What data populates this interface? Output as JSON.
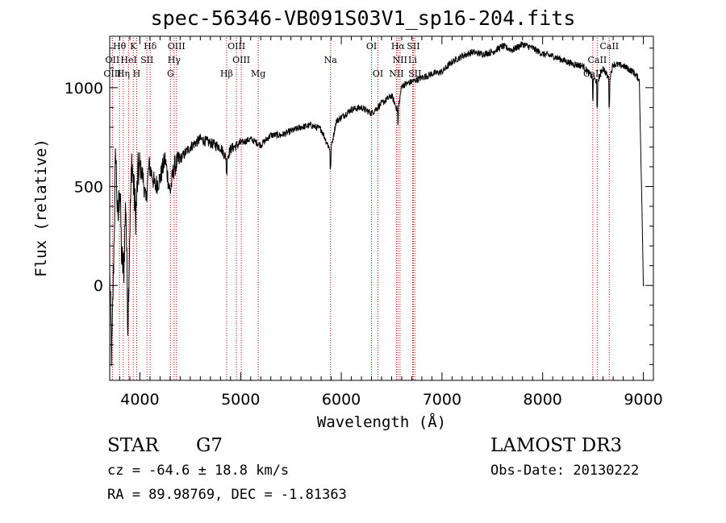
{
  "chart_data": {
    "type": "line",
    "title": "spec-56346-VB091S03V1_sp16-204.fits",
    "xlabel": "Wavelength (Å)",
    "ylabel": "Flux (relative)",
    "xlim": [
      3700,
      9100
    ],
    "ylim": [
      -480,
      1260
    ],
    "x_ticks": [
      4000,
      5000,
      6000,
      7000,
      8000,
      9000
    ],
    "y_ticks": [
      0,
      500,
      1000
    ],
    "line_color": "#000000",
    "marker_color": "#cc0000",
    "spectrum_anchors": [
      [
        3700,
        60
      ],
      [
        3720,
        -380
      ],
      [
        3740,
        150
      ],
      [
        3760,
        700
      ],
      [
        3780,
        300
      ],
      [
        3800,
        520
      ],
      [
        3820,
        120
      ],
      [
        3840,
        80
      ],
      [
        3860,
        450
      ],
      [
        3880,
        -200
      ],
      [
        3900,
        300
      ],
      [
        3920,
        640
      ],
      [
        3940,
        480
      ],
      [
        3960,
        350
      ],
      [
        3980,
        560
      ],
      [
        4000,
        600
      ],
      [
        4030,
        550
      ],
      [
        4060,
        420
      ],
      [
        4090,
        610
      ],
      [
        4120,
        560
      ],
      [
        4150,
        500
      ],
      [
        4200,
        540
      ],
      [
        4250,
        640
      ],
      [
        4300,
        470
      ],
      [
        4340,
        600
      ],
      [
        4400,
        640
      ],
      [
        4500,
        700
      ],
      [
        4600,
        740
      ],
      [
        4700,
        720
      ],
      [
        4800,
        700
      ],
      [
        4861,
        640
      ],
      [
        4900,
        690
      ],
      [
        5000,
        720
      ],
      [
        5100,
        740
      ],
      [
        5200,
        710
      ],
      [
        5300,
        760
      ],
      [
        5400,
        760
      ],
      [
        5500,
        780
      ],
      [
        5600,
        800
      ],
      [
        5700,
        810
      ],
      [
        5800,
        790
      ],
      [
        5893,
        680
      ],
      [
        5950,
        830
      ],
      [
        6000,
        850
      ],
      [
        6100,
        890
      ],
      [
        6200,
        900
      ],
      [
        6300,
        870
      ],
      [
        6400,
        920
      ],
      [
        6500,
        960
      ],
      [
        6563,
        880
      ],
      [
        6600,
        1010
      ],
      [
        6700,
        1030
      ],
      [
        6800,
        1050
      ],
      [
        6900,
        1070
      ],
      [
        7000,
        1080
      ],
      [
        7100,
        1130
      ],
      [
        7200,
        1160
      ],
      [
        7300,
        1180
      ],
      [
        7400,
        1170
      ],
      [
        7500,
        1180
      ],
      [
        7600,
        1210
      ],
      [
        7700,
        1190
      ],
      [
        7800,
        1220
      ],
      [
        7900,
        1200
      ],
      [
        8000,
        1170
      ],
      [
        8100,
        1160
      ],
      [
        8200,
        1140
      ],
      [
        8300,
        1120
      ],
      [
        8400,
        1110
      ],
      [
        8498,
        1050
      ],
      [
        8542,
        1030
      ],
      [
        8600,
        1100
      ],
      [
        8662,
        1040
      ],
      [
        8700,
        1120
      ],
      [
        8800,
        1110
      ],
      [
        8900,
        1080
      ],
      [
        8960,
        1040
      ],
      [
        8990,
        300
      ],
      [
        9000,
        0
      ]
    ],
    "spectral_lines": [
      {
        "label": "Hθ",
        "wave": 3797,
        "row": 1
      },
      {
        "label": "K",
        "wave": 3934,
        "row": 1
      },
      {
        "label": "Hδ",
        "wave": 4102,
        "row": 1
      },
      {
        "label": "OIII",
        "wave": 4363,
        "row": 1
      },
      {
        "label": "OIII",
        "wave": 4959,
        "row": 1
      },
      {
        "label": "OI",
        "wave": 6300,
        "row": 1
      },
      {
        "label": "Hα",
        "wave": 6563,
        "row": 1
      },
      {
        "label": "SII",
        "wave": 6716,
        "row": 1
      },
      {
        "label": "CaII",
        "wave": 8662,
        "row": 1
      },
      {
        "label": "OII",
        "wave": 3727,
        "row": 2
      },
      {
        "label": "HeI",
        "wave": 3889,
        "row": 2
      },
      {
        "label": "SII",
        "wave": 4070,
        "row": 2
      },
      {
        "label": "Hγ",
        "wave": 4340,
        "row": 2
      },
      {
        "label": "OIII",
        "wave": 5007,
        "row": 2
      },
      {
        "label": "Na",
        "wave": 5893,
        "row": 2
      },
      {
        "label": "NII",
        "wave": 6583,
        "row": 2
      },
      {
        "label": "Li",
        "wave": 6708,
        "row": 2
      },
      {
        "label": "CaII",
        "wave": 8542,
        "row": 2
      },
      {
        "label": "OIII",
        "wave": 3727,
        "row": 3
      },
      {
        "label": "Hη",
        "wave": 3835,
        "row": 3
      },
      {
        "label": "H",
        "wave": 3968,
        "row": 3
      },
      {
        "label": "G",
        "wave": 4304,
        "row": 3
      },
      {
        "label": "Hβ",
        "wave": 4861,
        "row": 3
      },
      {
        "label": "Mg",
        "wave": 5175,
        "row": 3
      },
      {
        "label": "OI",
        "wave": 6364,
        "row": 3
      },
      {
        "label": "NII",
        "wave": 6548,
        "row": 3
      },
      {
        "label": "SII",
        "wave": 6731,
        "row": 3
      },
      {
        "label": "CaII",
        "wave": 8498,
        "row": 3
      }
    ]
  },
  "info": {
    "object_class": "STAR",
    "subclass": "G7",
    "survey": "LAMOST DR3",
    "cz": "cz = -64.6 ± 18.8 km/s",
    "obs_date": "Obs-Date: 20130222",
    "coords": "RA =  89.98769, DEC =  -1.81363"
  }
}
